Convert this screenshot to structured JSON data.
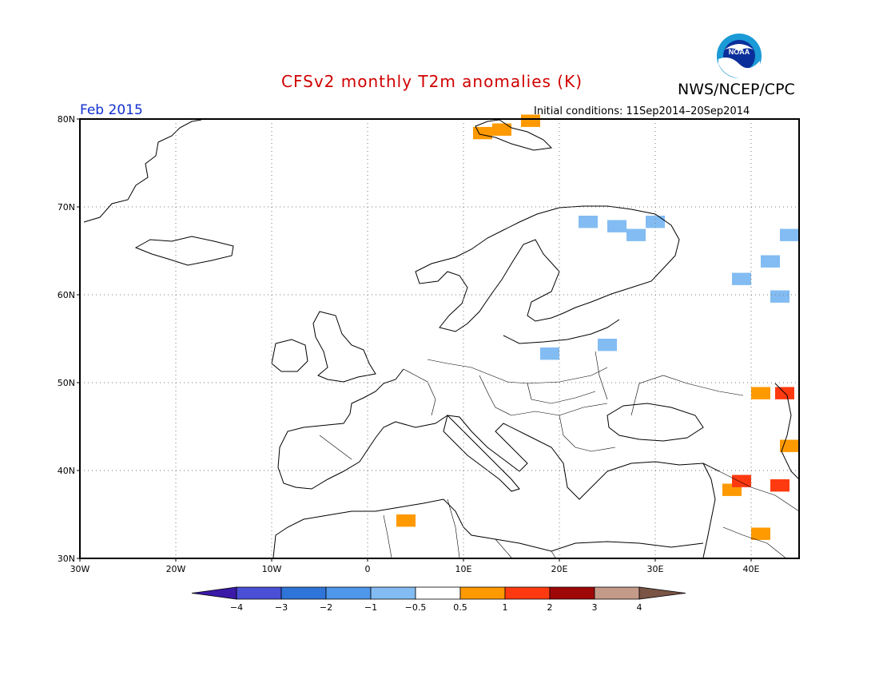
{
  "header": {
    "title": "CFSv2 monthly T2m anomalies (K)",
    "org": "NWS/NCEP/CPC",
    "month": "Feb 2015",
    "initial_conditions": "Initial conditions: 11Sep2014–20Sep2014",
    "logo_text": "NOAA"
  },
  "map": {
    "lon_range": [
      -30,
      45
    ],
    "lat_range": [
      30,
      80
    ],
    "lon_ticks": [
      "30W",
      "20W",
      "10W",
      "0",
      "10E",
      "20E",
      "30E",
      "40E"
    ],
    "lat_ticks": [
      "80N",
      "70N",
      "60N",
      "50N",
      "40N",
      "30N"
    ]
  },
  "legend": {
    "labels": [
      "−4",
      "−3",
      "−2",
      "−1",
      "−0.5",
      "0.5",
      "1",
      "2",
      "3",
      "4"
    ],
    "colors": [
      "#3a1aa6",
      "#4a4fd6",
      "#2f74d8",
      "#4f97ea",
      "#82bcf2",
      "#ffffff",
      "#ff9900",
      "#ff3a10",
      "#a00808",
      "#c49a88",
      "#7a5444"
    ]
  },
  "anomaly_cells": [
    {
      "lon": 12,
      "lat": 78.6,
      "value": 0.7
    },
    {
      "lon": 14,
      "lat": 79,
      "value": 0.7
    },
    {
      "lon": 17,
      "lat": 80,
      "value": 0.7
    },
    {
      "lon": 23,
      "lat": 68.5,
      "value": -0.8
    },
    {
      "lon": 26,
      "lat": 68,
      "value": -0.8
    },
    {
      "lon": 28,
      "lat": 67,
      "value": -0.8
    },
    {
      "lon": 30,
      "lat": 68.5,
      "value": -0.8
    },
    {
      "lon": 39,
      "lat": 62,
      "value": -0.8
    },
    {
      "lon": 42,
      "lat": 64,
      "value": -0.8
    },
    {
      "lon": 44,
      "lat": 67,
      "value": -0.8
    },
    {
      "lon": 43,
      "lat": 60,
      "value": -0.8
    },
    {
      "lon": 19,
      "lat": 53.5,
      "value": -0.8
    },
    {
      "lon": 25,
      "lat": 54.5,
      "value": -0.8
    },
    {
      "lon": 41,
      "lat": 49,
      "value": 0.7
    },
    {
      "lon": 43.5,
      "lat": 49,
      "value": 1.5
    },
    {
      "lon": 44,
      "lat": 43,
      "value": 0.7
    },
    {
      "lon": 38,
      "lat": 38,
      "value": 0.7
    },
    {
      "lon": 39,
      "lat": 39,
      "value": 1.5
    },
    {
      "lon": 43,
      "lat": 38.5,
      "value": 1.5
    },
    {
      "lon": 41,
      "lat": 33,
      "value": 0.7
    },
    {
      "lon": 4,
      "lat": 34.5,
      "value": 0.7
    }
  ]
}
